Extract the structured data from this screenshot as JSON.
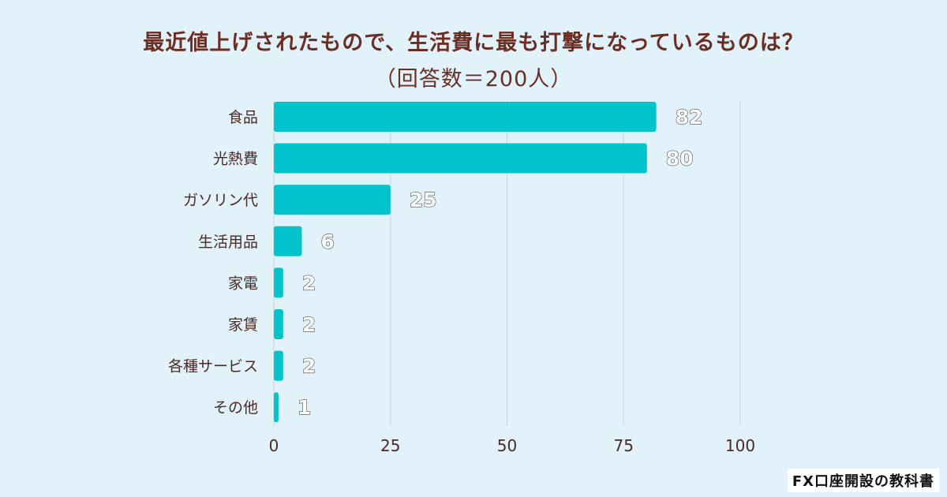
{
  "colors": {
    "background": "#e1f2fa",
    "bar": "#00c3cc",
    "grid": "#c7d3da",
    "title": "#6b2e22"
  },
  "chart_data": {
    "type": "bar",
    "orientation": "horizontal",
    "title_line1": "最近値上げされたもので、生活費に最も打撃になっているものは？",
    "title_line2": "（回答数＝200人）",
    "categories": [
      "食品",
      "光熱費",
      "ガソリン代",
      "生活用品",
      "家電",
      "家賃",
      "各種サービス",
      "その他"
    ],
    "values": [
      82,
      80,
      25,
      6,
      2,
      2,
      2,
      1
    ],
    "xlim": [
      0,
      100
    ],
    "xticks": [
      0,
      25,
      50,
      75,
      100
    ],
    "grid": true,
    "xlabel": "",
    "ylabel": ""
  },
  "watermark": "FX口座開設の教科書"
}
